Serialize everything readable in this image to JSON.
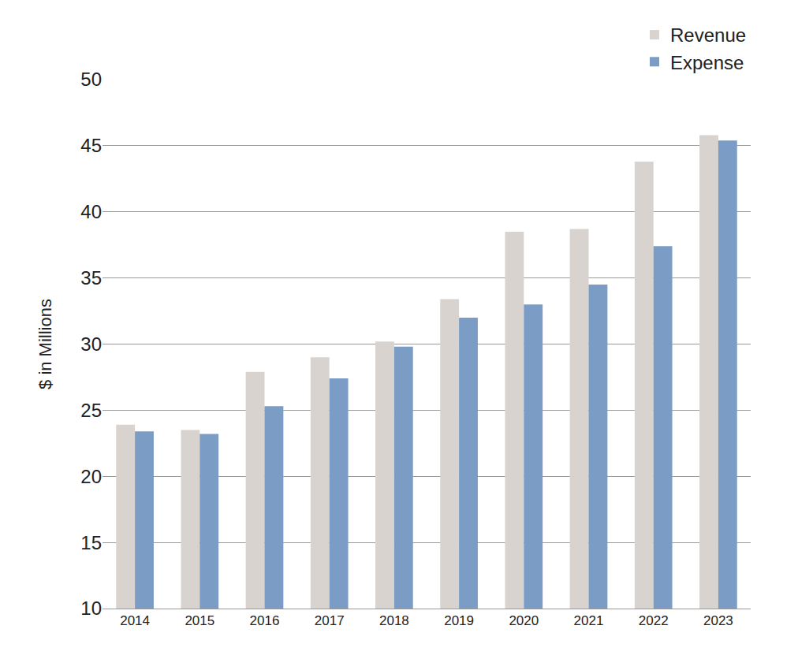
{
  "chart_data": {
    "type": "bar",
    "y_label": "$ in Millions",
    "categories": [
      "2014",
      "2015",
      "2016",
      "2017",
      "2018",
      "2019",
      "2020",
      "2021",
      "2022",
      "2023"
    ],
    "series": [
      {
        "name": "Revenue",
        "color": "#d8d3ce",
        "values": [
          23.9,
          23.5,
          27.9,
          29.0,
          30.2,
          33.4,
          38.5,
          38.7,
          43.8,
          45.8
        ]
      },
      {
        "name": "Expense",
        "color": "#7b9cc4",
        "values": [
          23.4,
          23.2,
          25.3,
          27.4,
          29.8,
          32.0,
          33.0,
          34.5,
          37.4,
          45.4
        ]
      }
    ],
    "ylim": [
      10,
      50
    ],
    "yticks": [
      10,
      15,
      20,
      25,
      30,
      35,
      40,
      45,
      50
    ],
    "grid": true,
    "legend": "top right"
  }
}
